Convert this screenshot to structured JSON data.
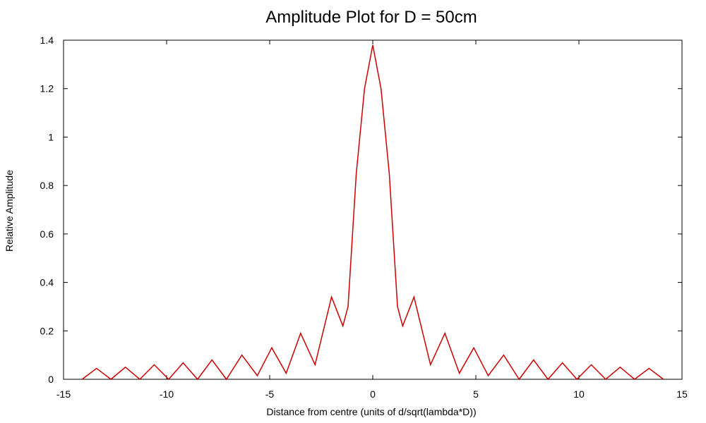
{
  "chart_data": {
    "type": "line",
    "title": "Amplitude Plot for D = 50cm",
    "xlabel": "Distance from centre (units of d/sqrt(lambda*D))",
    "ylabel": "Relative Amplitude",
    "xlim": [
      -15,
      15
    ],
    "ylim": [
      0,
      1.4
    ],
    "x_ticks": [
      -15,
      -10,
      -5,
      0,
      5,
      10,
      15
    ],
    "x_tick_labels": [
      "-15",
      "-10",
      "-5",
      "0",
      "5",
      "10",
      "15"
    ],
    "y_ticks": [
      0,
      0.2,
      0.4,
      0.6,
      0.8,
      1.0,
      1.2,
      1.4
    ],
    "y_tick_labels": [
      "0",
      "0.2",
      "0.4",
      "0.6",
      "0.8",
      "1",
      "1.2",
      "1.4"
    ],
    "grid": false,
    "series": [
      {
        "color": "#cc0000",
        "x": [
          -14.1,
          -13.4,
          -12.7,
          -12.0,
          -11.3,
          -10.6,
          -9.9,
          -9.2,
          -8.5,
          -7.8,
          -7.1,
          -6.35,
          -5.6,
          -4.9,
          -4.2,
          -3.5,
          -2.8,
          -2.0,
          -1.45,
          -1.2,
          -0.8,
          -0.4,
          0.0,
          0.4,
          0.8,
          1.2,
          1.45,
          2.0,
          2.8,
          3.5,
          4.2,
          4.9,
          5.6,
          6.35,
          7.1,
          7.8,
          8.5,
          9.2,
          9.9,
          10.6,
          11.3,
          12.0,
          12.7,
          13.4,
          14.1
        ],
        "y": [
          0.0,
          0.045,
          0.0,
          0.05,
          0.0,
          0.06,
          0.0,
          0.068,
          0.0,
          0.08,
          0.0,
          0.1,
          0.015,
          0.13,
          0.025,
          0.19,
          0.06,
          0.34,
          0.22,
          0.3,
          0.85,
          1.2,
          1.38,
          1.2,
          0.85,
          0.3,
          0.22,
          0.34,
          0.06,
          0.19,
          0.025,
          0.13,
          0.015,
          0.1,
          0.0,
          0.08,
          0.0,
          0.068,
          0.0,
          0.06,
          0.0,
          0.05,
          0.0,
          0.045,
          0.0
        ]
      }
    ]
  }
}
